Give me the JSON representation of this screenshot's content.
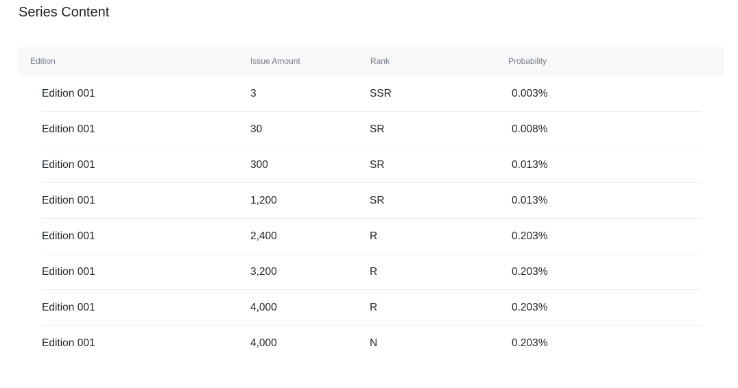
{
  "title": "Series Content",
  "table": {
    "headers": [
      "Edition",
      "Issue Amount",
      "Rank",
      "Probability"
    ],
    "rows": [
      [
        "Edition 001",
        "3",
        "SSR",
        "0.003%"
      ],
      [
        "Edition 001",
        "30",
        "SR",
        "0.008%"
      ],
      [
        "Edition 001",
        "300",
        "SR",
        "0.013%"
      ],
      [
        "Edition 001",
        "1,200",
        "SR",
        "0.013%"
      ],
      [
        "Edition 001",
        "2,400",
        "R",
        "0.203%"
      ],
      [
        "Edition 001",
        "3,200",
        "R",
        "0.203%"
      ],
      [
        "Edition 001",
        "4,000",
        "R",
        "0.203%"
      ],
      [
        "Edition 001",
        "4,000",
        "N",
        "0.203%"
      ]
    ]
  }
}
